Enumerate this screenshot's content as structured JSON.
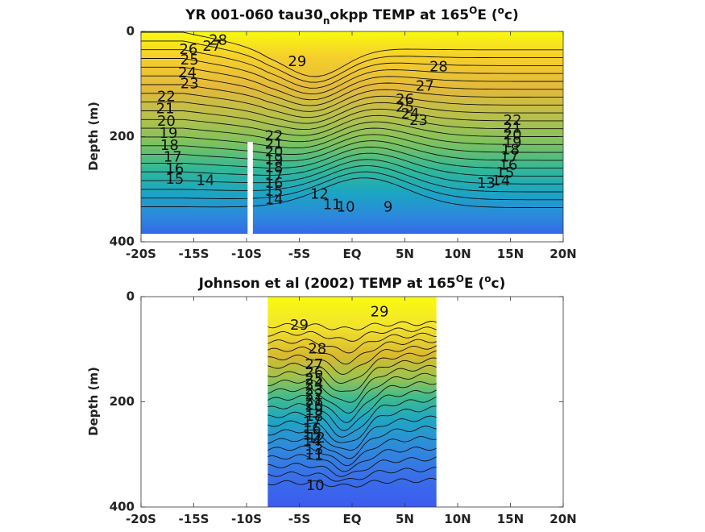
{
  "chart_data": [
    {
      "type": "heatmap",
      "title": "YR 001-060 tau30",
      "title_sub": "n",
      "title_mid": "okpp TEMP at 165",
      "title_sup": "O",
      "title_after": "E (",
      "title_sup2": "o",
      "title_end": "c)",
      "xlabel": "",
      "ylabel": "Depth (m)",
      "x_ticks": [
        "-20S",
        "-15S",
        "-10S",
        "-5S",
        "EQ",
        "5N",
        "10N",
        "15N",
        "20N"
      ],
      "x_tick_values": [
        -20,
        -15,
        -10,
        -5,
        0,
        5,
        10,
        15,
        20
      ],
      "y_ticks": [
        "0",
        "200",
        "400"
      ],
      "y_tick_values": [
        0,
        200,
        400
      ],
      "xlim": [
        -20,
        20
      ],
      "ylim": [
        400,
        0
      ],
      "data_extent": {
        "lat": [
          -20,
          20
        ],
        "depth": [
          0,
          385
        ]
      },
      "gap": {
        "lat": [
          -9.9,
          -9.4
        ],
        "depth": [
          210,
          385
        ]
      },
      "colormap": "parula",
      "contour_levels": [
        9,
        10,
        11,
        12,
        13,
        14,
        15,
        16,
        17,
        18,
        19,
        20,
        21,
        22,
        23,
        24,
        25,
        26,
        27,
        28,
        29
      ],
      "contour_labels": [
        {
          "text": "28",
          "lat": -12.7,
          "depth": 18
        },
        {
          "text": "27",
          "lat": -13.3,
          "depth": 29
        },
        {
          "text": "26",
          "lat": -15.5,
          "depth": 35
        },
        {
          "text": "25",
          "lat": -15.4,
          "depth": 55
        },
        {
          "text": "24",
          "lat": -15.6,
          "depth": 80
        },
        {
          "text": "23",
          "lat": -15.4,
          "depth": 100
        },
        {
          "text": "22",
          "lat": -17.6,
          "depth": 125
        },
        {
          "text": "21",
          "lat": -17.7,
          "depth": 148
        },
        {
          "text": "20",
          "lat": -17.6,
          "depth": 172
        },
        {
          "text": "19",
          "lat": -17.4,
          "depth": 195
        },
        {
          "text": "18",
          "lat": -17.3,
          "depth": 218
        },
        {
          "text": "17",
          "lat": -17.0,
          "depth": 240
        },
        {
          "text": "16",
          "lat": -16.8,
          "depth": 262
        },
        {
          "text": "15",
          "lat": -16.8,
          "depth": 282
        },
        {
          "text": "14",
          "lat": -13.9,
          "depth": 284
        },
        {
          "text": "29",
          "lat": -5.2,
          "depth": 58
        },
        {
          "text": "22",
          "lat": -7.4,
          "depth": 200
        },
        {
          "text": "21",
          "lat": -7.4,
          "depth": 215
        },
        {
          "text": "20",
          "lat": -7.4,
          "depth": 230
        },
        {
          "text": "19",
          "lat": -7.4,
          "depth": 245
        },
        {
          "text": "18",
          "lat": -7.4,
          "depth": 260
        },
        {
          "text": "17",
          "lat": -7.4,
          "depth": 275
        },
        {
          "text": "16",
          "lat": -7.4,
          "depth": 290
        },
        {
          "text": "15",
          "lat": -7.4,
          "depth": 305
        },
        {
          "text": "14",
          "lat": -7.4,
          "depth": 320
        },
        {
          "text": "12",
          "lat": -3.1,
          "depth": 310
        },
        {
          "text": "11",
          "lat": -1.9,
          "depth": 330
        },
        {
          "text": "10",
          "lat": -0.6,
          "depth": 335
        },
        {
          "text": "9",
          "lat": 3.4,
          "depth": 335
        },
        {
          "text": "28",
          "lat": 8.2,
          "depth": 68
        },
        {
          "text": "27",
          "lat": 6.9,
          "depth": 105
        },
        {
          "text": "26",
          "lat": 5.0,
          "depth": 130
        },
        {
          "text": "25",
          "lat": 5.0,
          "depth": 145
        },
        {
          "text": "24",
          "lat": 5.5,
          "depth": 158
        },
        {
          "text": "23",
          "lat": 6.3,
          "depth": 170
        },
        {
          "text": "22",
          "lat": 15.2,
          "depth": 170
        },
        {
          "text": "21",
          "lat": 15.2,
          "depth": 185
        },
        {
          "text": "20",
          "lat": 15.2,
          "depth": 198
        },
        {
          "text": "19",
          "lat": 15.2,
          "depth": 212
        },
        {
          "text": "18",
          "lat": 15.0,
          "depth": 226
        },
        {
          "text": "17",
          "lat": 14.9,
          "depth": 240
        },
        {
          "text": "16",
          "lat": 14.8,
          "depth": 255
        },
        {
          "text": "15",
          "lat": 14.5,
          "depth": 270
        },
        {
          "text": "14",
          "lat": 14.1,
          "depth": 285
        },
        {
          "text": "13",
          "lat": 12.7,
          "depth": 290
        }
      ]
    },
    {
      "type": "heatmap",
      "title": "Johnson et al (2002) TEMP at 165",
      "title_sup": "O",
      "title_after": "E (",
      "title_sup2": "o",
      "title_end": "c)",
      "xlabel": "",
      "ylabel": "Depth (m)",
      "x_ticks": [
        "-20S",
        "-15S",
        "-10S",
        "-5S",
        "EQ",
        "5N",
        "10N",
        "15N",
        "20N"
      ],
      "x_tick_values": [
        -20,
        -15,
        -10,
        -5,
        0,
        5,
        10,
        15,
        20
      ],
      "y_ticks": [
        "0",
        "200",
        "400"
      ],
      "y_tick_values": [
        0,
        200,
        400
      ],
      "xlim": [
        -20,
        20
      ],
      "ylim": [
        400,
        0
      ],
      "data_extent": {
        "lat": [
          -8,
          8
        ],
        "depth": [
          0,
          400
        ]
      },
      "colormap": "parula",
      "contour_levels": [
        10,
        11,
        12,
        13,
        14,
        15,
        16,
        17,
        18,
        19,
        20,
        21,
        22,
        23,
        24,
        25,
        26,
        27,
        28,
        29
      ],
      "contour_labels": [
        {
          "text": "29",
          "lat": -5.0,
          "depth": 55
        },
        {
          "text": "29",
          "lat": 2.6,
          "depth": 30
        },
        {
          "text": "28",
          "lat": -3.3,
          "depth": 100
        },
        {
          "text": "27",
          "lat": -3.6,
          "depth": 130
        },
        {
          "text": "26",
          "lat": -3.6,
          "depth": 145
        },
        {
          "text": "25",
          "lat": -3.6,
          "depth": 158
        },
        {
          "text": "24",
          "lat": -3.6,
          "depth": 168
        },
        {
          "text": "23",
          "lat": -3.6,
          "depth": 178
        },
        {
          "text": "22",
          "lat": -3.6,
          "depth": 188
        },
        {
          "text": "21",
          "lat": -3.6,
          "depth": 198
        },
        {
          "text": "20",
          "lat": -3.6,
          "depth": 208
        },
        {
          "text": "19",
          "lat": -3.6,
          "depth": 218
        },
        {
          "text": "18",
          "lat": -3.6,
          "depth": 228
        },
        {
          "text": "17",
          "lat": -3.8,
          "depth": 240
        },
        {
          "text": "16",
          "lat": -3.8,
          "depth": 252
        },
        {
          "text": "15",
          "lat": -3.8,
          "depth": 264
        },
        {
          "text": "14",
          "lat": -3.8,
          "depth": 276
        },
        {
          "text": "13",
          "lat": -3.6,
          "depth": 292
        },
        {
          "text": "12",
          "lat": -3.4,
          "depth": 270
        },
        {
          "text": "11",
          "lat": -3.6,
          "depth": 302
        },
        {
          "text": "10",
          "lat": -3.5,
          "depth": 360
        }
      ]
    }
  ]
}
